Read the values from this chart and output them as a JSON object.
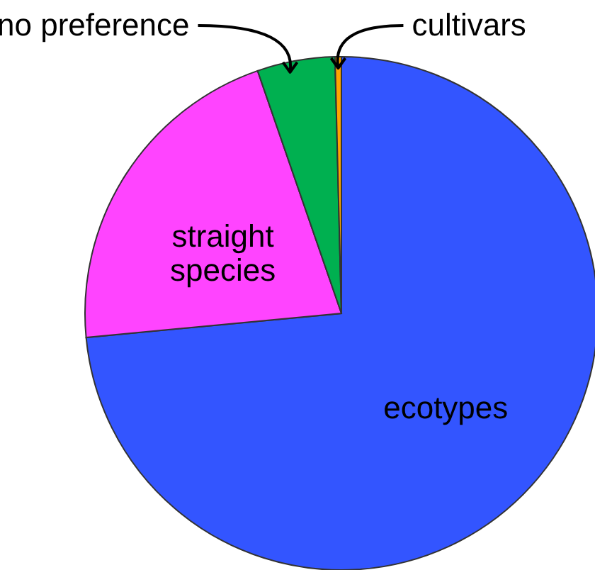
{
  "chart_data": {
    "type": "pie",
    "categories": [
      "ecotypes",
      "straight species",
      "no preference",
      "cultivars"
    ],
    "values": [
      73.5,
      21.2,
      4.9,
      0.4
    ],
    "colors": [
      "#3355ff",
      "#ff44ff",
      "#00b050",
      "#ffa500"
    ],
    "legend": false
  }
}
